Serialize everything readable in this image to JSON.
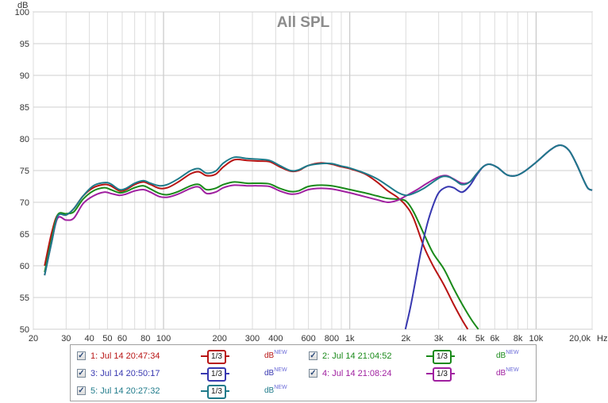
{
  "chart_data": {
    "type": "line",
    "title": "All SPL",
    "ylabel": "dB",
    "xunit": "Hz",
    "xscale": "log",
    "xlim": [
      20,
      20000
    ],
    "ylim": [
      50,
      100
    ],
    "yticks": [
      50,
      55,
      60,
      65,
      70,
      75,
      80,
      85,
      90,
      95,
      100
    ],
    "xticks": [
      {
        "value": 20,
        "label": "20"
      },
      {
        "value": 30,
        "label": "30"
      },
      {
        "value": 40,
        "label": "40"
      },
      {
        "value": 50,
        "label": "50"
      },
      {
        "value": 60,
        "label": "60"
      },
      {
        "value": 80,
        "label": "80"
      },
      {
        "value": 100,
        "label": "100"
      },
      {
        "value": 200,
        "label": "200"
      },
      {
        "value": 300,
        "label": "300"
      },
      {
        "value": 400,
        "label": "400"
      },
      {
        "value": 600,
        "label": "600"
      },
      {
        "value": 800,
        "label": "800"
      },
      {
        "value": 1000,
        "label": "1k"
      },
      {
        "value": 2000,
        "label": "2k"
      },
      {
        "value": 3000,
        "label": "3k"
      },
      {
        "value": 4000,
        "label": "4k"
      },
      {
        "value": 5000,
        "label": "5k"
      },
      {
        "value": 6000,
        "label": "6k"
      },
      {
        "value": 8000,
        "label": "8k"
      },
      {
        "value": 10000,
        "label": "10k"
      },
      {
        "value": 20000,
        "label": "20,0k"
      }
    ],
    "grid": true,
    "legend_position": "bottom",
    "series": [
      {
        "name": "1: Jul 14 20:47:34",
        "color": "#b81414",
        "points": [
          [
            23,
            60
          ],
          [
            25,
            65
          ],
          [
            27,
            68
          ],
          [
            30,
            68
          ],
          [
            33,
            69
          ],
          [
            37,
            71
          ],
          [
            42,
            72.3
          ],
          [
            48,
            72.8
          ],
          [
            52,
            72.6
          ],
          [
            58,
            71.8
          ],
          [
            63,
            72
          ],
          [
            70,
            72.8
          ],
          [
            78,
            73.2
          ],
          [
            85,
            72.8
          ],
          [
            95,
            72.2
          ],
          [
            105,
            72.3
          ],
          [
            120,
            73.2
          ],
          [
            140,
            74.5
          ],
          [
            155,
            74.8
          ],
          [
            170,
            74.2
          ],
          [
            190,
            74.4
          ],
          [
            210,
            75.6
          ],
          [
            240,
            76.7
          ],
          [
            280,
            76.6
          ],
          [
            320,
            76.5
          ],
          [
            370,
            76.4
          ],
          [
            420,
            75.6
          ],
          [
            480,
            74.9
          ],
          [
            530,
            75
          ],
          [
            600,
            75.8
          ],
          [
            700,
            76.2
          ],
          [
            800,
            76
          ],
          [
            900,
            75.6
          ],
          [
            1000,
            75.3
          ],
          [
            1200,
            74.5
          ],
          [
            1400,
            73.2
          ],
          [
            1600,
            71.8
          ],
          [
            1800,
            70.8
          ],
          [
            2000,
            69.5
          ],
          [
            2200,
            67.5
          ],
          [
            2500,
            63
          ],
          [
            2800,
            60
          ],
          [
            3200,
            57
          ],
          [
            3600,
            54
          ],
          [
            4000,
            51.5
          ],
          [
            4300,
            50
          ]
        ]
      },
      {
        "name": "2: Jul 14 21:04:52",
        "color": "#1a8a1a",
        "points": [
          [
            23,
            59
          ],
          [
            25,
            64
          ],
          [
            27,
            68
          ],
          [
            30,
            68.2
          ],
          [
            33,
            68.5
          ],
          [
            37,
            70.5
          ],
          [
            42,
            71.8
          ],
          [
            48,
            72.3
          ],
          [
            52,
            72
          ],
          [
            58,
            71.5
          ],
          [
            63,
            71.7
          ],
          [
            70,
            72.3
          ],
          [
            78,
            72.6
          ],
          [
            85,
            72.1
          ],
          [
            95,
            71.4
          ],
          [
            105,
            71.2
          ],
          [
            120,
            71.7
          ],
          [
            140,
            72.6
          ],
          [
            155,
            72.8
          ],
          [
            170,
            72
          ],
          [
            190,
            72.2
          ],
          [
            210,
            72.8
          ],
          [
            240,
            73.2
          ],
          [
            280,
            73
          ],
          [
            320,
            73
          ],
          [
            370,
            72.9
          ],
          [
            420,
            72.2
          ],
          [
            480,
            71.7
          ],
          [
            530,
            71.8
          ],
          [
            600,
            72.5
          ],
          [
            700,
            72.7
          ],
          [
            800,
            72.6
          ],
          [
            900,
            72.3
          ],
          [
            1000,
            72
          ],
          [
            1200,
            71.5
          ],
          [
            1400,
            71
          ],
          [
            1600,
            70.6
          ],
          [
            1800,
            70.5
          ],
          [
            2000,
            70.2
          ],
          [
            2200,
            68.5
          ],
          [
            2500,
            65
          ],
          [
            2800,
            62
          ],
          [
            3200,
            59.5
          ],
          [
            3600,
            56.5
          ],
          [
            4000,
            54
          ],
          [
            4500,
            51.5
          ],
          [
            4900,
            50
          ]
        ]
      },
      {
        "name": "3: Jul 14 20:50:17",
        "color": "#3838b0",
        "points": [
          [
            1990,
            50
          ],
          [
            2100,
            53
          ],
          [
            2200,
            56
          ],
          [
            2400,
            62
          ],
          [
            2600,
            66.5
          ],
          [
            2800,
            69.5
          ],
          [
            3000,
            71.5
          ],
          [
            3300,
            72.4
          ],
          [
            3600,
            72.3
          ],
          [
            4000,
            71.6
          ],
          [
            4400,
            72.6
          ],
          [
            4800,
            74.3
          ],
          [
            5200,
            75.6
          ],
          [
            5600,
            76
          ],
          [
            6200,
            75.5
          ],
          [
            7000,
            74.3
          ],
          [
            7800,
            74.2
          ],
          [
            8600,
            74.8
          ],
          [
            10000,
            76.3
          ],
          [
            12000,
            78.3
          ],
          [
            13500,
            79
          ],
          [
            15000,
            78.2
          ],
          [
            16500,
            76
          ],
          [
            18000,
            73.5
          ],
          [
            19000,
            72.2
          ],
          [
            20000,
            71.9
          ]
        ]
      },
      {
        "name": "4: Jul 14 21:08:24",
        "color": "#a020a0",
        "points": [
          [
            23,
            58.5
          ],
          [
            25,
            63.5
          ],
          [
            27,
            67.5
          ],
          [
            30,
            67.2
          ],
          [
            33,
            67.5
          ],
          [
            37,
            69.8
          ],
          [
            42,
            71
          ],
          [
            48,
            71.6
          ],
          [
            52,
            71.4
          ],
          [
            58,
            71.1
          ],
          [
            63,
            71.3
          ],
          [
            70,
            71.8
          ],
          [
            78,
            72
          ],
          [
            85,
            71.6
          ],
          [
            95,
            70.9
          ],
          [
            105,
            70.8
          ],
          [
            120,
            71.3
          ],
          [
            140,
            72.2
          ],
          [
            155,
            72.4
          ],
          [
            170,
            71.4
          ],
          [
            190,
            71.6
          ],
          [
            210,
            72.3
          ],
          [
            240,
            72.7
          ],
          [
            280,
            72.6
          ],
          [
            320,
            72.6
          ],
          [
            370,
            72.5
          ],
          [
            420,
            71.8
          ],
          [
            480,
            71.3
          ],
          [
            530,
            71.4
          ],
          [
            600,
            72
          ],
          [
            700,
            72.2
          ],
          [
            800,
            72.1
          ],
          [
            900,
            71.8
          ],
          [
            1000,
            71.5
          ],
          [
            1200,
            70.9
          ],
          [
            1400,
            70.4
          ],
          [
            1600,
            70
          ],
          [
            1800,
            70.3
          ],
          [
            2000,
            71
          ],
          [
            2300,
            72
          ],
          [
            2600,
            73
          ],
          [
            3000,
            74
          ],
          [
            3300,
            74.2
          ],
          [
            3600,
            73.7
          ],
          [
            4000,
            73
          ],
          [
            4400,
            73.2
          ],
          [
            4800,
            74.5
          ],
          [
            5200,
            75.6
          ],
          [
            5600,
            76
          ],
          [
            6200,
            75.5
          ],
          [
            7000,
            74.3
          ],
          [
            7800,
            74.2
          ],
          [
            8600,
            74.8
          ],
          [
            10000,
            76.3
          ],
          [
            12000,
            78.3
          ],
          [
            13500,
            79
          ],
          [
            15000,
            78.2
          ],
          [
            16500,
            76
          ],
          [
            18000,
            73.5
          ],
          [
            19000,
            72.2
          ],
          [
            20000,
            71.9
          ]
        ]
      },
      {
        "name": "5: Jul 14 20:27:32",
        "color": "#1e7a8a",
        "points": [
          [
            23,
            58.5
          ],
          [
            25,
            63.5
          ],
          [
            27,
            67.8
          ],
          [
            30,
            68
          ],
          [
            33,
            69
          ],
          [
            37,
            71
          ],
          [
            42,
            72.6
          ],
          [
            48,
            73.1
          ],
          [
            52,
            72.9
          ],
          [
            58,
            72
          ],
          [
            63,
            72.2
          ],
          [
            70,
            73
          ],
          [
            78,
            73.4
          ],
          [
            85,
            73
          ],
          [
            95,
            72.6
          ],
          [
            105,
            72.8
          ],
          [
            120,
            73.7
          ],
          [
            140,
            75
          ],
          [
            155,
            75.3
          ],
          [
            170,
            74.6
          ],
          [
            190,
            74.9
          ],
          [
            210,
            76.2
          ],
          [
            240,
            77.1
          ],
          [
            280,
            76.9
          ],
          [
            320,
            76.8
          ],
          [
            370,
            76.6
          ],
          [
            420,
            75.8
          ],
          [
            480,
            75
          ],
          [
            530,
            75.1
          ],
          [
            600,
            75.8
          ],
          [
            700,
            76.1
          ],
          [
            800,
            76.1
          ],
          [
            900,
            75.7
          ],
          [
            1000,
            75.4
          ],
          [
            1200,
            74.6
          ],
          [
            1400,
            73.7
          ],
          [
            1600,
            72.6
          ],
          [
            1800,
            71.6
          ],
          [
            2000,
            71.1
          ],
          [
            2200,
            71.4
          ],
          [
            2500,
            72.2
          ],
          [
            2800,
            73.2
          ],
          [
            3100,
            74
          ],
          [
            3400,
            74
          ],
          [
            3700,
            73.4
          ],
          [
            4000,
            72.8
          ],
          [
            4400,
            73.2
          ],
          [
            4800,
            74.5
          ],
          [
            5200,
            75.6
          ],
          [
            5600,
            76
          ],
          [
            6200,
            75.5
          ],
          [
            7000,
            74.3
          ],
          [
            7800,
            74.2
          ],
          [
            8600,
            74.8
          ],
          [
            10000,
            76.3
          ],
          [
            12000,
            78.3
          ],
          [
            13500,
            79
          ],
          [
            15000,
            78.2
          ],
          [
            16500,
            76
          ],
          [
            18000,
            73.5
          ],
          [
            19000,
            72.2
          ],
          [
            20000,
            71.9
          ]
        ]
      }
    ]
  },
  "legend": {
    "entries": [
      {
        "label": "1: Jul 14 20:47:34",
        "color": "#b81414",
        "checked": true,
        "smoothing": "1/3",
        "db": "dB",
        "db_sup": "NEW"
      },
      {
        "label": "2: Jul 14 21:04:52",
        "color": "#1a8a1a",
        "checked": true,
        "smoothing": "1/3",
        "db": "dB",
        "db_sup": "NEW"
      },
      {
        "label": "3: Jul 14 20:50:17",
        "color": "#3838b0",
        "checked": true,
        "smoothing": "1/3",
        "db": "dB",
        "db_sup": "NEW"
      },
      {
        "label": "4: Jul 14 21:08:24",
        "color": "#a020a0",
        "checked": true,
        "smoothing": "1/3",
        "db": "dB",
        "db_sup": "NEW"
      },
      {
        "label": "5: Jul 14 20:27:32",
        "color": "#1e7a8a",
        "checked": true,
        "smoothing": "1/3",
        "db": "dB",
        "db_sup": "NEW"
      }
    ]
  }
}
